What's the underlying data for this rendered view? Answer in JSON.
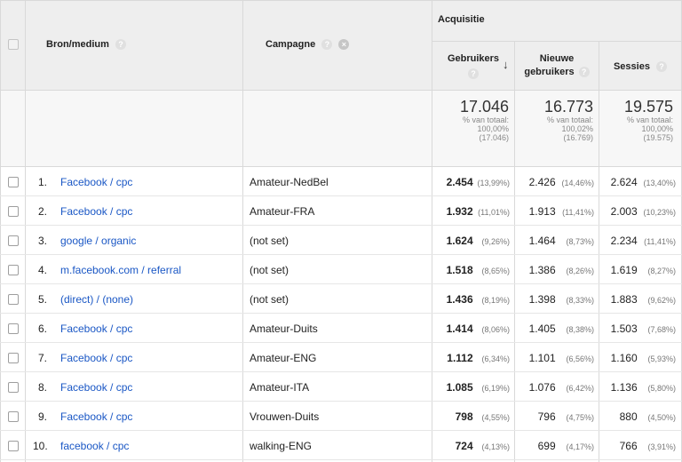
{
  "header": {
    "col_source": "Bron/medium",
    "col_campaign": "Campagne",
    "group": "Acquisitie",
    "col_users": "Gebruikers",
    "col_new_users_1": "Nieuwe",
    "col_new_users_2": "gebruikers",
    "col_sessions": "Sessies",
    "help_glyph": "?",
    "clear_glyph": "×",
    "sort_glyph": "↓"
  },
  "totals": {
    "users": {
      "value": "17.046",
      "label": "% van totaal:",
      "pct": "100,00%",
      "base": "(17.046)"
    },
    "new_users": {
      "value": "16.773",
      "label": "% van totaal:",
      "pct": "100,02%",
      "base": "(16.769)"
    },
    "sessions": {
      "value": "19.575",
      "label": "% van totaal:",
      "pct": "100,00%",
      "base": "(19.575)"
    }
  },
  "rows": [
    {
      "idx": "1.",
      "source": "Facebook / cpc",
      "campaign": "Amateur-NedBel",
      "users": "2.454",
      "users_pct": "(13,99%)",
      "new_users": "2.426",
      "new_users_pct": "(14,46%)",
      "sessions": "2.624",
      "sessions_pct": "(13,40%)"
    },
    {
      "idx": "2.",
      "source": "Facebook / cpc",
      "campaign": "Amateur-FRA",
      "users": "1.932",
      "users_pct": "(11,01%)",
      "new_users": "1.913",
      "new_users_pct": "(11,41%)",
      "sessions": "2.003",
      "sessions_pct": "(10,23%)"
    },
    {
      "idx": "3.",
      "source": "google / organic",
      "campaign": "(not set)",
      "users": "1.624",
      "users_pct": "(9,26%)",
      "new_users": "1.464",
      "new_users_pct": "(8,73%)",
      "sessions": "2.234",
      "sessions_pct": "(11,41%)"
    },
    {
      "idx": "4.",
      "source": "m.facebook.com / referral",
      "campaign": "(not set)",
      "users": "1.518",
      "users_pct": "(8,65%)",
      "new_users": "1.386",
      "new_users_pct": "(8,26%)",
      "sessions": "1.619",
      "sessions_pct": "(8,27%)"
    },
    {
      "idx": "5.",
      "source": "(direct) / (none)",
      "campaign": "(not set)",
      "users": "1.436",
      "users_pct": "(8,19%)",
      "new_users": "1.398",
      "new_users_pct": "(8,33%)",
      "sessions": "1.883",
      "sessions_pct": "(9,62%)"
    },
    {
      "idx": "6.",
      "source": "Facebook / cpc",
      "campaign": "Amateur-Duits",
      "users": "1.414",
      "users_pct": "(8,06%)",
      "new_users": "1.405",
      "new_users_pct": "(8,38%)",
      "sessions": "1.503",
      "sessions_pct": "(7,68%)"
    },
    {
      "idx": "7.",
      "source": "Facebook / cpc",
      "campaign": "Amateur-ENG",
      "users": "1.112",
      "users_pct": "(6,34%)",
      "new_users": "1.101",
      "new_users_pct": "(6,56%)",
      "sessions": "1.160",
      "sessions_pct": "(5,93%)"
    },
    {
      "idx": "8.",
      "source": "Facebook / cpc",
      "campaign": "Amateur-ITA",
      "users": "1.085",
      "users_pct": "(6,19%)",
      "new_users": "1.076",
      "new_users_pct": "(6,42%)",
      "sessions": "1.136",
      "sessions_pct": "(5,80%)"
    },
    {
      "idx": "9.",
      "source": "Facebook / cpc",
      "campaign": "Vrouwen-Duits",
      "users": "798",
      "users_pct": "(4,55%)",
      "new_users": "796",
      "new_users_pct": "(4,75%)",
      "sessions": "880",
      "sessions_pct": "(4,50%)"
    },
    {
      "idx": "10.",
      "source": "facebook / cpc",
      "campaign": "walking-ENG",
      "users": "724",
      "users_pct": "(4,13%)",
      "new_users": "699",
      "new_users_pct": "(4,17%)",
      "sessions": "766",
      "sessions_pct": "(3,91%)"
    }
  ]
}
